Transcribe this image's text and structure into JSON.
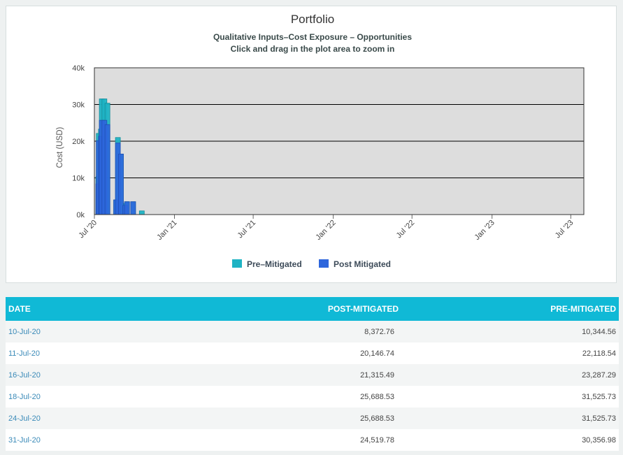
{
  "chart_data": {
    "type": "bar",
    "title": "Portfolio",
    "subtitle_line1": "Qualitative Inputs–Cost Exposure – Opportunities",
    "subtitle_line2": "Click and drag in the plot area to zoom in",
    "ylabel": "Cost (USD)",
    "xlabel": "",
    "ylim": [
      0,
      40000
    ],
    "yticks": [
      {
        "value": 0,
        "label": "0k"
      },
      {
        "value": 10000,
        "label": "10k"
      },
      {
        "value": 20000,
        "label": "20k"
      },
      {
        "value": 30000,
        "label": "30k"
      },
      {
        "value": 40000,
        "label": "40k"
      }
    ],
    "xlim": [
      "2020-07-01",
      "2023-07-31"
    ],
    "xticks": [
      {
        "date": "2020-07-01",
        "label": "Jul '20"
      },
      {
        "date": "2021-01-01",
        "label": "Jan '21"
      },
      {
        "date": "2021-07-01",
        "label": "Jul '21"
      },
      {
        "date": "2022-01-01",
        "label": "Jan '22"
      },
      {
        "date": "2022-07-01",
        "label": "Jul '22"
      },
      {
        "date": "2023-01-01",
        "label": "Jan '23"
      },
      {
        "date": "2023-07-01",
        "label": "Jul '23"
      }
    ],
    "grid": true,
    "legend_position": "bottom",
    "series": [
      {
        "name": "Pre-Mitigated",
        "color": "#1fb3c4",
        "points": [
          {
            "date": "2020-07-10",
            "value": 10344.56
          },
          {
            "date": "2020-07-11",
            "value": 22118.54
          },
          {
            "date": "2020-07-16",
            "value": 23287.29
          },
          {
            "date": "2020-07-18",
            "value": 31525.73
          },
          {
            "date": "2020-07-24",
            "value": 31525.73
          },
          {
            "date": "2020-07-31",
            "value": 30356.98
          },
          {
            "date": "2020-08-20",
            "value": 4000
          },
          {
            "date": "2020-08-24",
            "value": 21000
          },
          {
            "date": "2020-08-31",
            "value": 16500
          },
          {
            "date": "2020-09-10",
            "value": 3000
          },
          {
            "date": "2020-09-14",
            "value": 3500
          },
          {
            "date": "2020-09-28",
            "value": 3500
          },
          {
            "date": "2020-10-18",
            "value": 1000
          }
        ]
      },
      {
        "name": "Post Mitigated",
        "color": "#2e66dc",
        "points": [
          {
            "date": "2020-07-10",
            "value": 8372.76
          },
          {
            "date": "2020-07-11",
            "value": 20146.74
          },
          {
            "date": "2020-07-16",
            "value": 21315.49
          },
          {
            "date": "2020-07-18",
            "value": 25688.53
          },
          {
            "date": "2020-07-24",
            "value": 25688.53
          },
          {
            "date": "2020-07-31",
            "value": 24519.78
          },
          {
            "date": "2020-08-20",
            "value": 4000
          },
          {
            "date": "2020-08-24",
            "value": 19500
          },
          {
            "date": "2020-08-31",
            "value": 16500
          },
          {
            "date": "2020-09-10",
            "value": 2500
          },
          {
            "date": "2020-09-14",
            "value": 3500
          },
          {
            "date": "2020-09-28",
            "value": 3500
          },
          {
            "date": "2020-10-18",
            "value": 0
          }
        ]
      }
    ]
  },
  "legend": {
    "pre_label": "Pre–Mitigated",
    "post_label": "Post Mitigated",
    "pre_color": "#1fb3c4",
    "post_color": "#2e66dc"
  },
  "table": {
    "headers": [
      "DATE",
      "POST-MITIGATED",
      "PRE-MITIGATED"
    ],
    "rows": [
      {
        "date": "10-Jul-20",
        "post": "8,372.76",
        "pre": "10,344.56"
      },
      {
        "date": "11-Jul-20",
        "post": "20,146.74",
        "pre": "22,118.54"
      },
      {
        "date": "16-Jul-20",
        "post": "21,315.49",
        "pre": "23,287.29"
      },
      {
        "date": "18-Jul-20",
        "post": "25,688.53",
        "pre": "31,525.73"
      },
      {
        "date": "24-Jul-20",
        "post": "25,688.53",
        "pre": "31,525.73"
      },
      {
        "date": "31-Jul-20",
        "post": "24,519.78",
        "pre": "30,356.98"
      }
    ]
  },
  "colors": {
    "plot_bg": "#dddddd",
    "header_bg": "#10b9d6",
    "link_text": "#3a8ab8"
  }
}
